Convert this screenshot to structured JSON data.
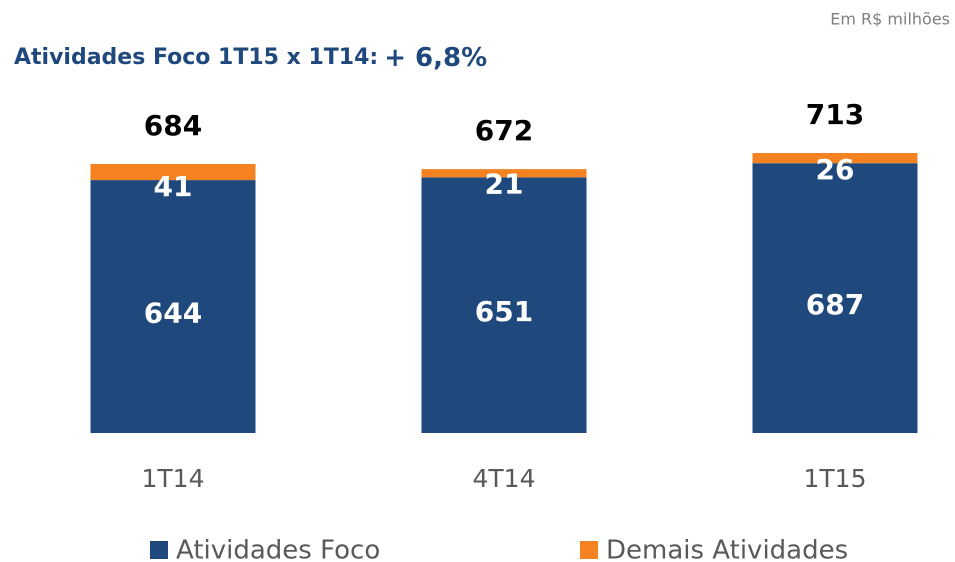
{
  "chart_data": {
    "type": "stacked_bar",
    "unit_note": "Em R$ milhões",
    "title": "Atividades Foco 1T15 x 1T14:",
    "title_highlight": "+ 6,8%",
    "categories": [
      "1T14",
      "4T14",
      "1T15"
    ],
    "series": [
      {
        "name": "Atividades Foco",
        "color": "#1f497d",
        "values": [
          644,
          651,
          687
        ]
      },
      {
        "name": "Demais Atividades",
        "color": "#f58220",
        "values": [
          41,
          21,
          26
        ]
      }
    ],
    "totals": [
      684,
      672,
      713
    ]
  }
}
